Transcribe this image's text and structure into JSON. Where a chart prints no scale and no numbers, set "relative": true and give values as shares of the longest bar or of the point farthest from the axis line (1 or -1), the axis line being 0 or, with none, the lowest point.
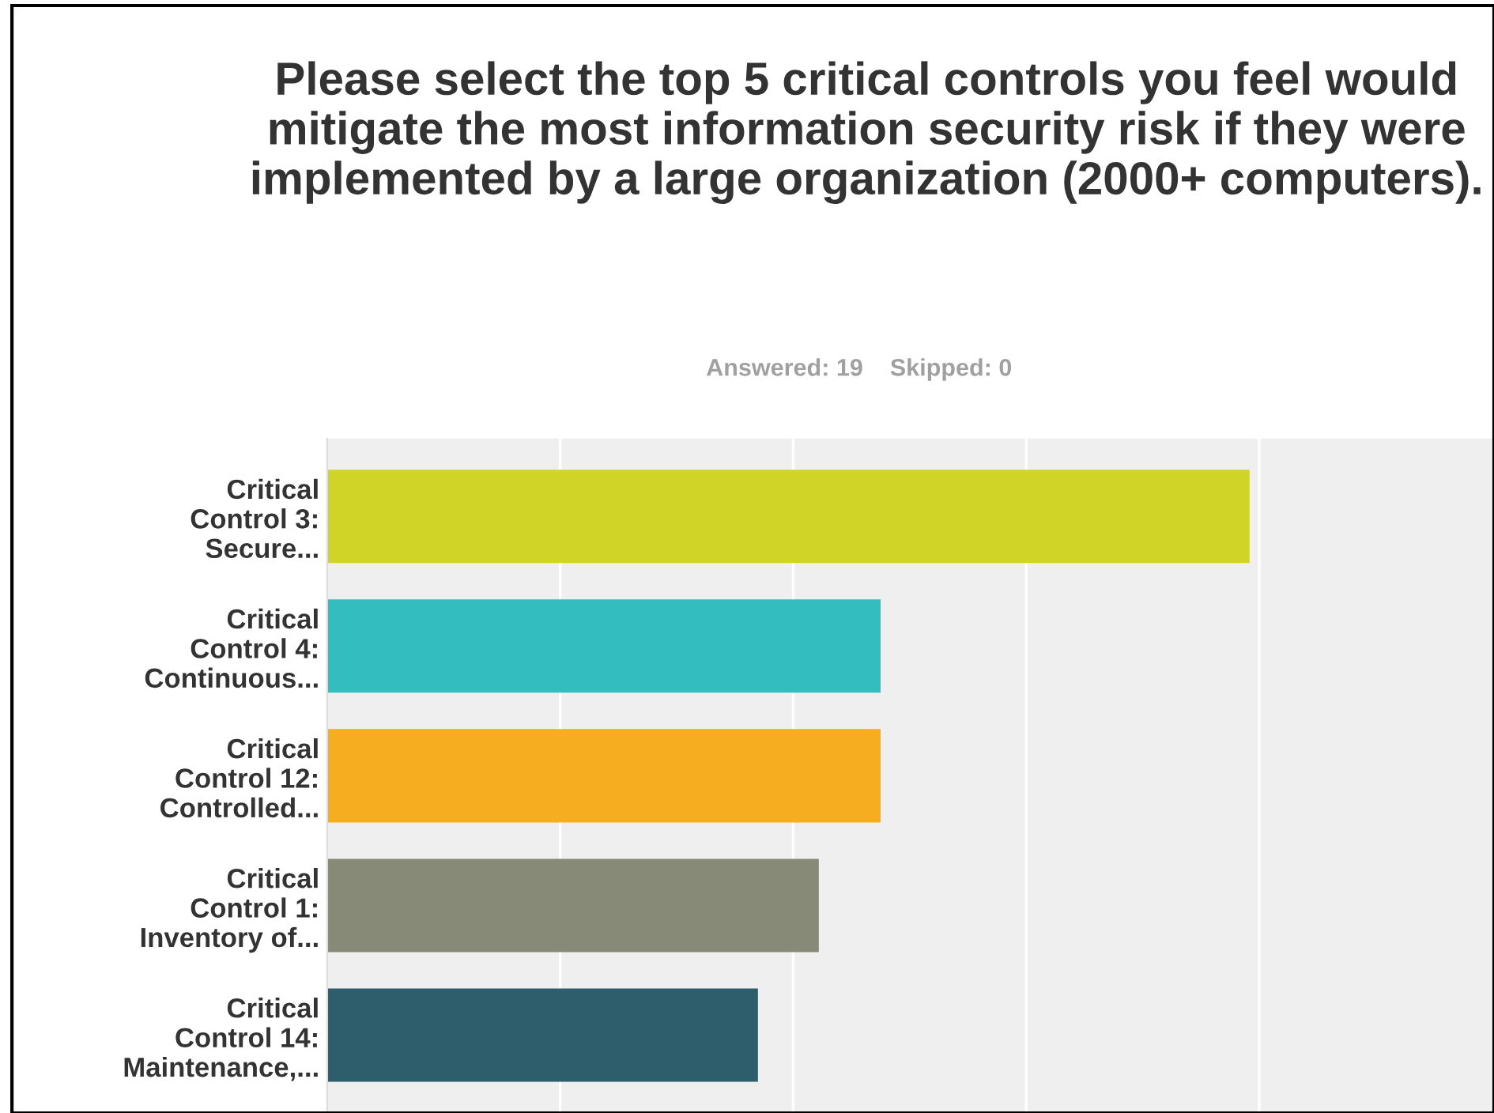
{
  "chart_data": {
    "type": "bar",
    "orientation": "horizontal",
    "relative": true,
    "grid": "x",
    "title": "Please select the top 5 critical controls you feel would mitigate the most information security risk if they were implemented by a large organization (2000+ computers).",
    "subtitle": "Answered: 19    Skipped: 0",
    "categories": [
      "Critical\nControl 3:\nSecure...",
      "Critical\nControl 4:\nContinuous...",
      "Critical\nControl 12:\nControlled...",
      "Critical\nControl 1:\nInventory of...",
      "Critical\nControl 14:\nMaintenance,..."
    ],
    "values": [
      1,
      0.6,
      0.6,
      0.533,
      0.467
    ],
    "colors": [
      "#cfd426",
      "#33bdbf",
      "#f6ad1f",
      "#888a78",
      "#2e5e6b"
    ]
  }
}
